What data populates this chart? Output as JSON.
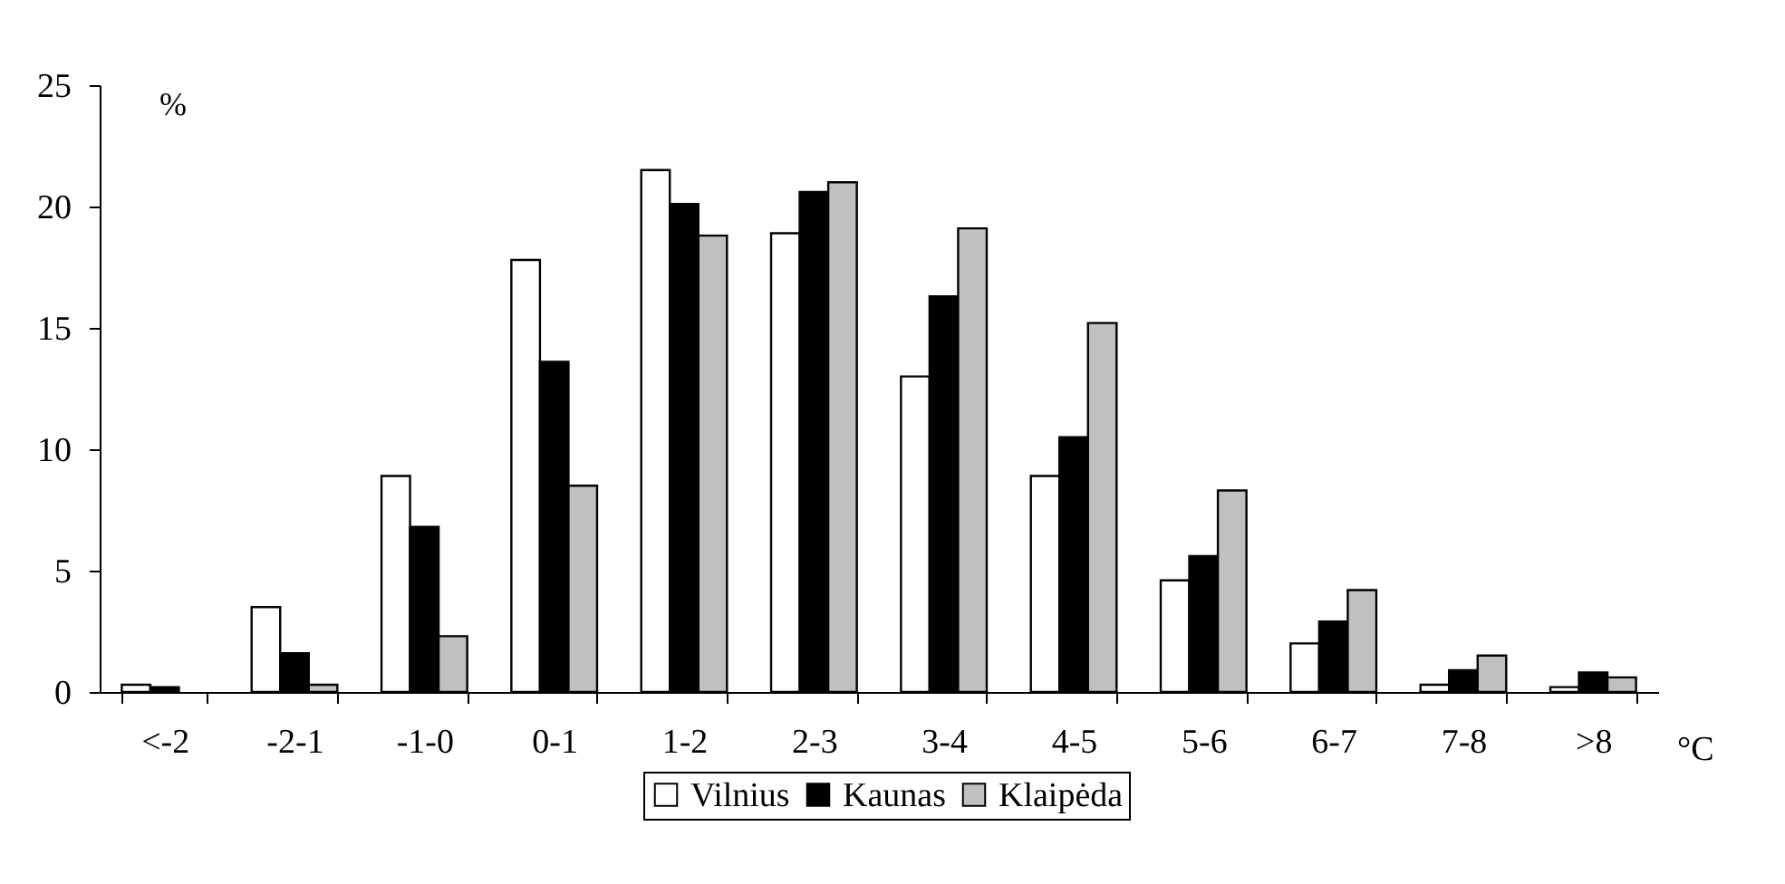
{
  "chart_data": {
    "type": "bar",
    "xlabel": "°C",
    "ylabel": "%",
    "categories": [
      "<-2",
      "-2-1",
      "-1-0",
      "0-1",
      "1-2",
      "2-3",
      "3-4",
      "4-5",
      "5-6",
      "6-7",
      "7-8",
      ">8"
    ],
    "series": [
      {
        "name": "Vilnius",
        "color": "#ffffff",
        "values": [
          0.3,
          3.5,
          8.9,
          17.8,
          21.5,
          18.9,
          13.0,
          8.9,
          4.6,
          2.0,
          0.3,
          0.2
        ]
      },
      {
        "name": "Kaunas",
        "color": "#000000",
        "values": [
          0.2,
          1.6,
          6.8,
          13.6,
          20.1,
          20.6,
          16.3,
          10.5,
          5.6,
          2.9,
          0.9,
          0.8
        ]
      },
      {
        "name": "Klaipėda",
        "color": "#c0c0c0",
        "values": [
          null,
          0.3,
          2.3,
          8.5,
          18.8,
          21.0,
          19.1,
          15.2,
          8.3,
          4.2,
          1.5,
          0.6
        ]
      }
    ],
    "ylim": [
      0,
      25
    ],
    "yticks": [
      0,
      5,
      10,
      15,
      20,
      25
    ],
    "grid": false,
    "legend": "bottom"
  }
}
